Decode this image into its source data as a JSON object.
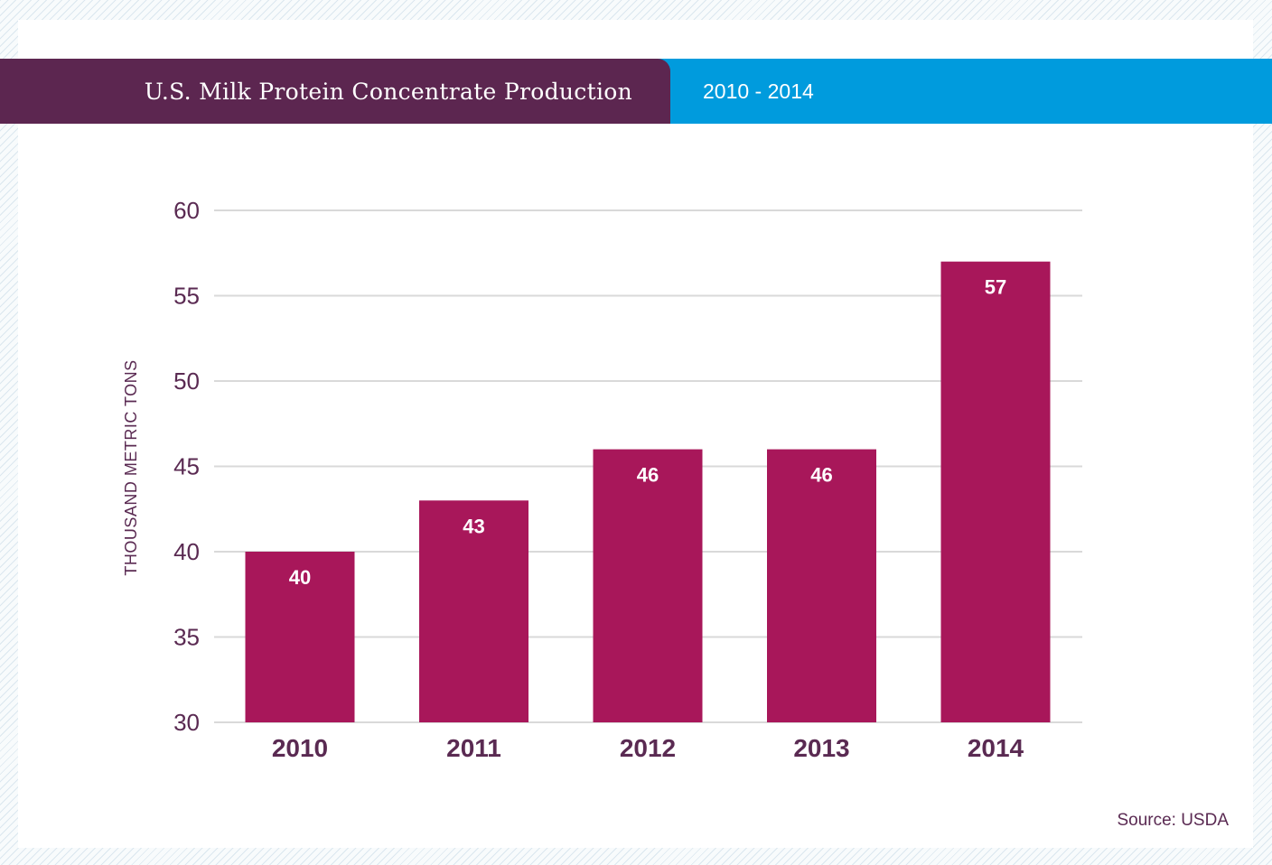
{
  "header": {
    "title": "U.S. Milk Protein Concentrate Production",
    "subtitle": "2010 - 2014"
  },
  "source": "Source: USDA",
  "colors": {
    "bar": "#a8175a",
    "title_band": "#5c2650",
    "subtitle_band": "#009bdd",
    "text": "#5a2a52",
    "grid": "#d9d9d9"
  },
  "chart_data": {
    "type": "bar",
    "title": "U.S. Milk Protein Concentrate Production",
    "subtitle": "2010 - 2014",
    "categories": [
      "2010",
      "2011",
      "2012",
      "2013",
      "2014"
    ],
    "values": [
      40,
      43,
      46,
      46,
      57
    ],
    "data_labels": [
      "40",
      "43",
      "46",
      "46",
      "57"
    ],
    "xlabel": "",
    "ylabel": "THOUSAND METRIC TONS",
    "ylim": [
      30,
      60
    ],
    "yticks": [
      30,
      35,
      40,
      45,
      50,
      55,
      60
    ],
    "grid": true,
    "legend": "none"
  }
}
